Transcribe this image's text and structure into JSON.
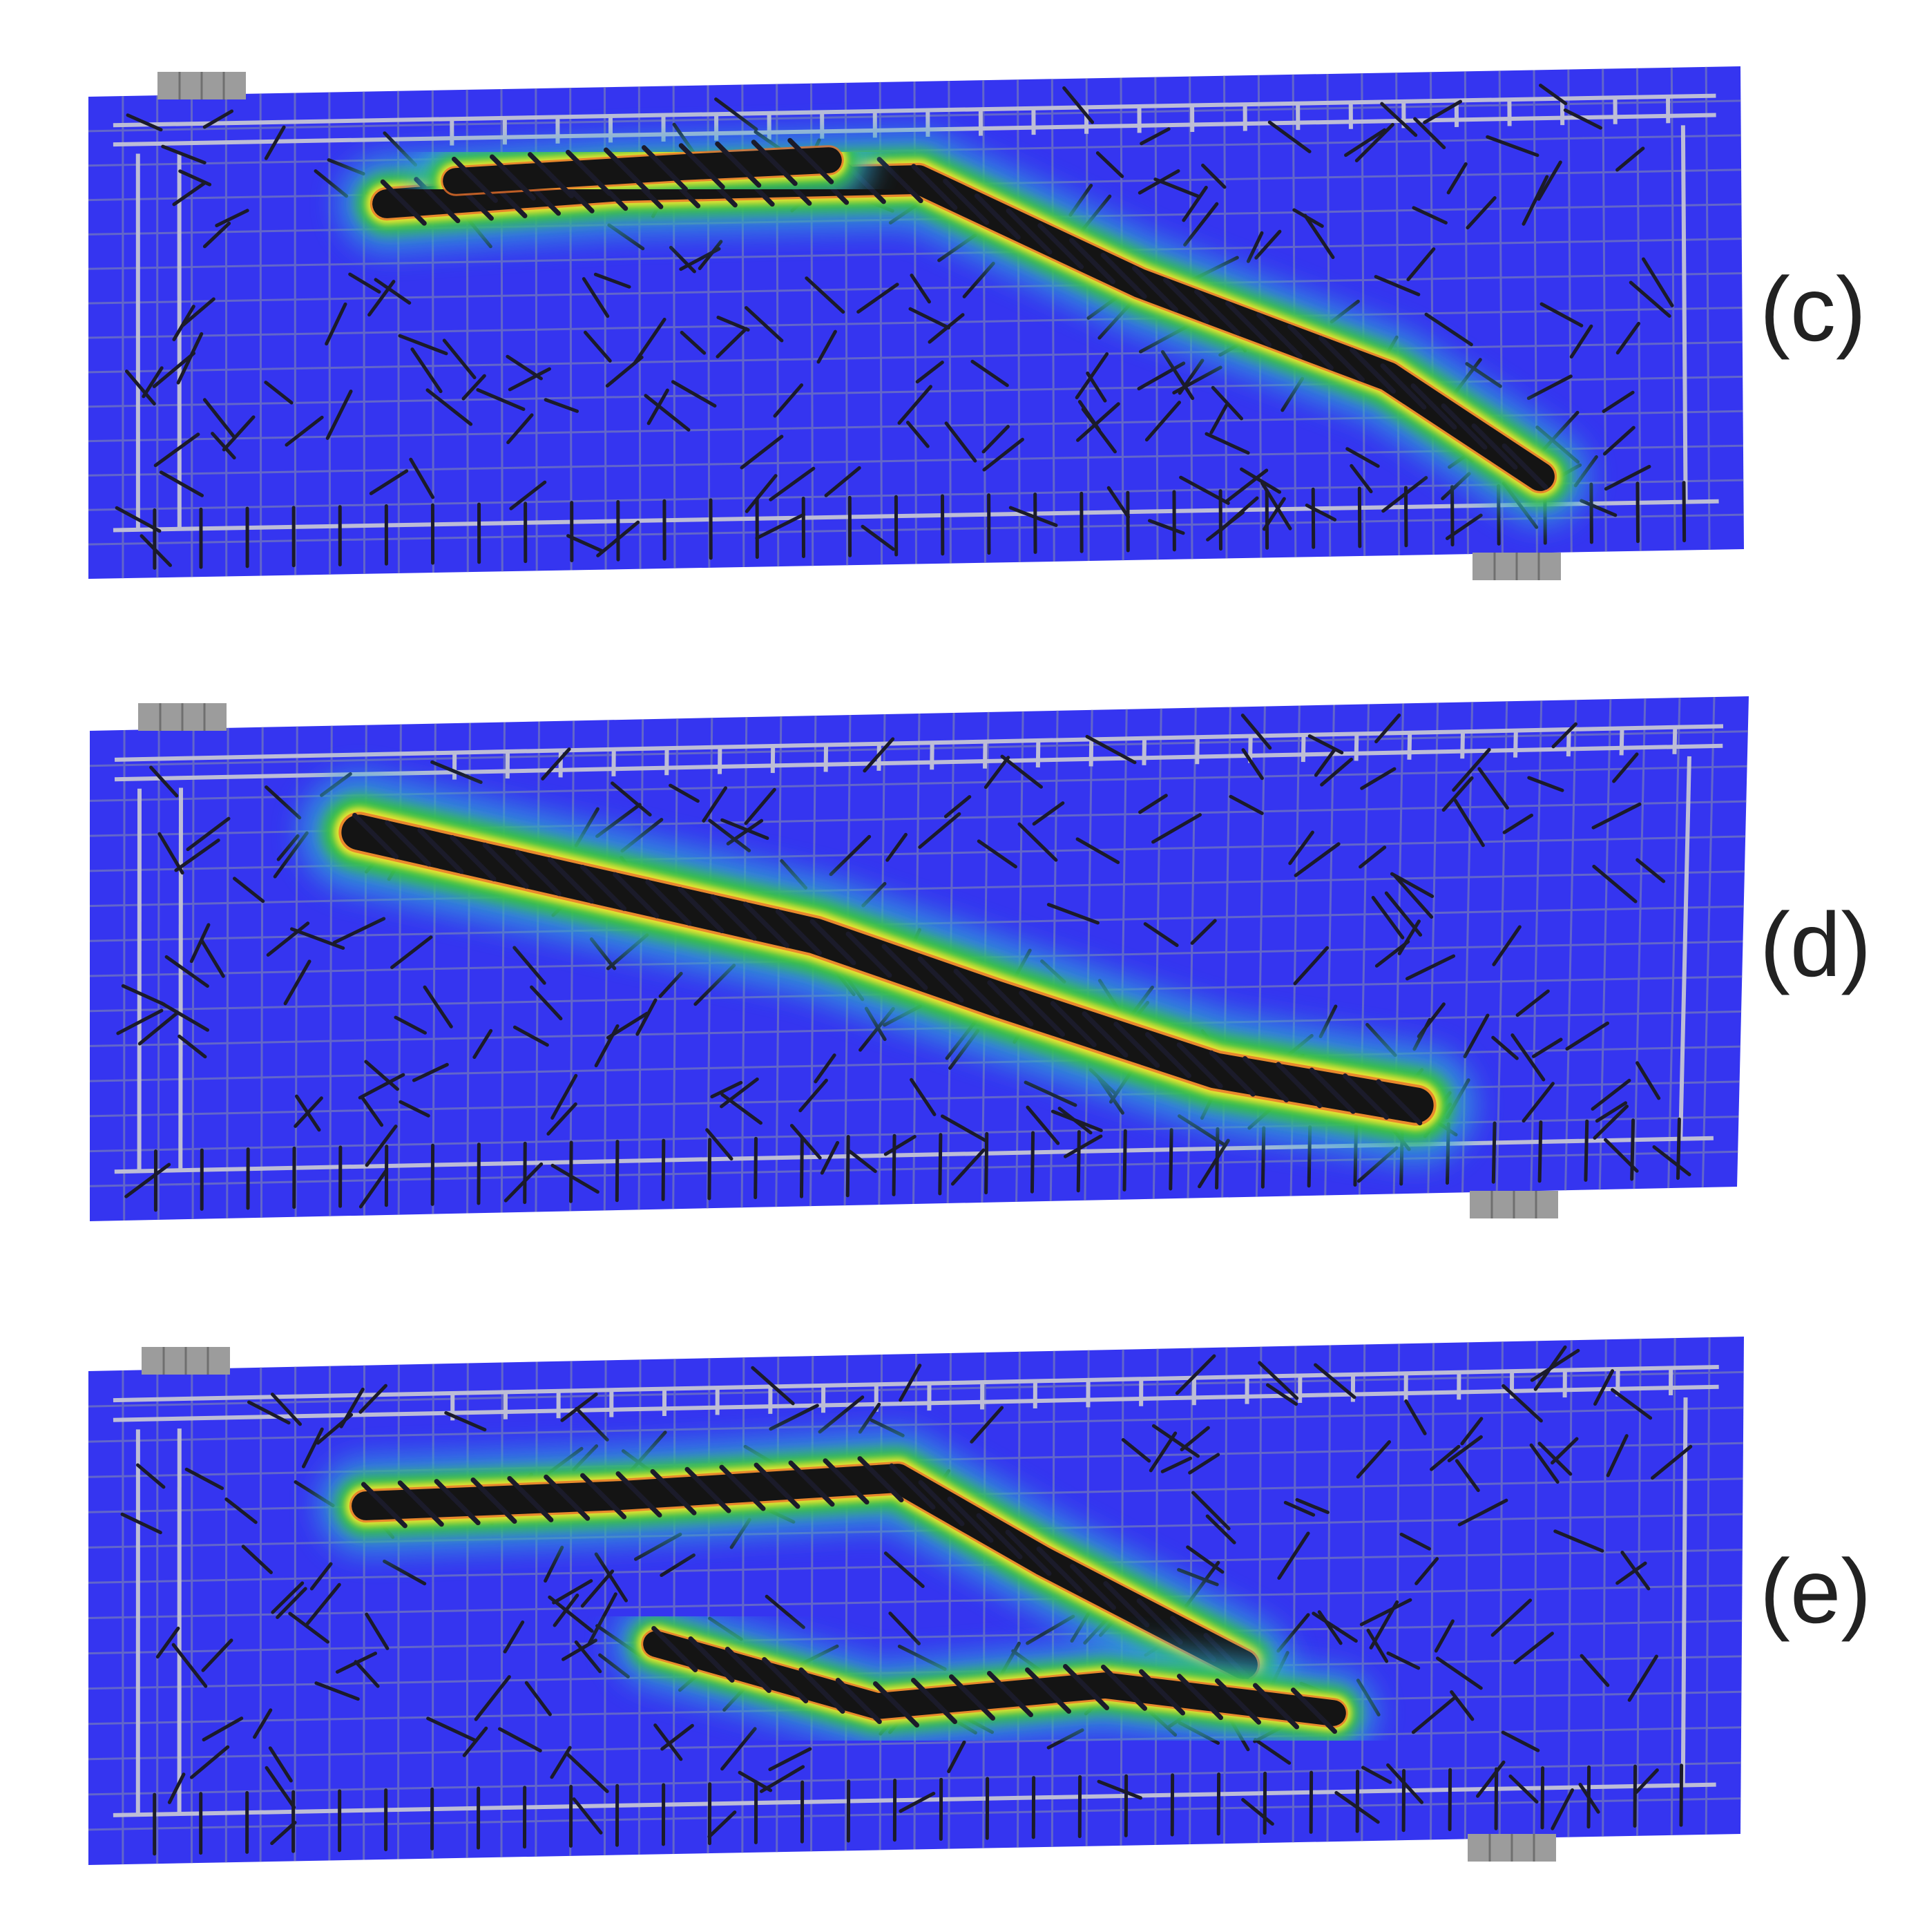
{
  "figure": {
    "panels": [
      {
        "id": "c",
        "label": "(c)"
      },
      {
        "id": "d",
        "label": "(d)"
      },
      {
        "id": "e",
        "label": "(e)"
      }
    ]
  },
  "colors": {
    "beam": "#3535f0",
    "grid": "#6a6fc4",
    "rebar": "#bdbdd6",
    "crack": "#1b1b2a",
    "plate": "#9c9c9c",
    "contour_1": "#33a6d8",
    "contour_2": "#1fbf8c",
    "contour_3": "#35c43a",
    "contour_4": "#b9e02b",
    "contour_5": "#f2e532",
    "contour_6": "#e8702a",
    "contour_7": "#d42a1c",
    "band_core": "#141414"
  }
}
